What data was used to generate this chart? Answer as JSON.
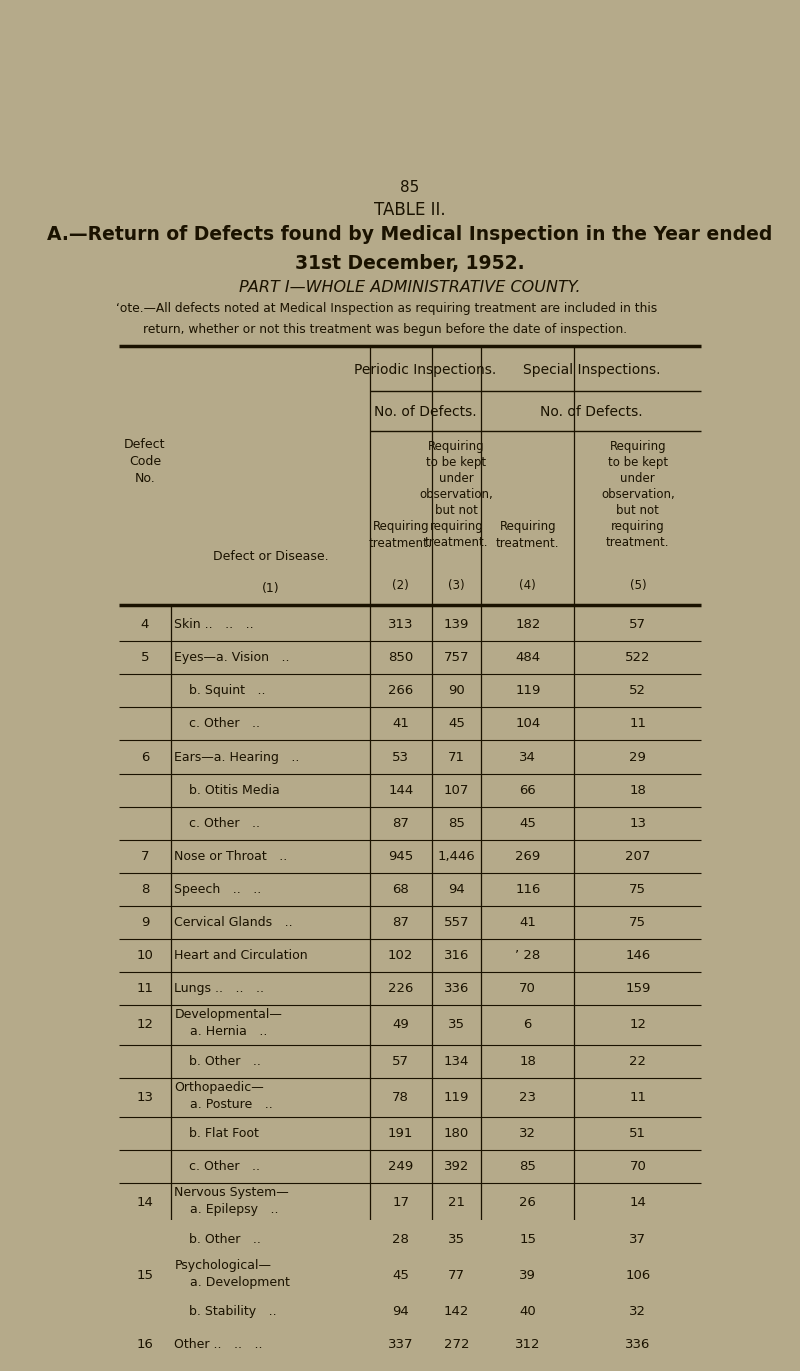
{
  "page_number": "85",
  "title_line1": "TABLE II.",
  "title_line2": "A.—Return of Defects found by Medical Inspection in the Year ended",
  "title_line3": "31st December, 1952.",
  "title_line4": "PART I—WHOLE ADMINISTRATIVE COUNTY.",
  "note_line1": "‘ote.—All defects noted at Medical Inspection as requiring treatment are included in this",
  "note_line2": "return, whether or not this treatment was begun before the date of inspection.",
  "bg_color": "#b5aa8a",
  "text_color": "#1a1200",
  "header1_periodic": "Periodic Inspections.",
  "header1_special": "Special Inspections.",
  "header2_periodic": "No. of Defects.",
  "header2_special": "No. of Defects.",
  "rows": [
    {
      "code": "4",
      "disease": "Skin .. .. ..",
      "c2": "313",
      "c3": "139",
      "c4": "182",
      "c5": "57",
      "indent": 0,
      "code_show": true,
      "two_line": false
    },
    {
      "code": "5",
      "disease": "Eyes—a. Vision ..",
      "c2": "850",
      "c3": "757",
      "c4": "484",
      "c5": "522",
      "indent": 0,
      "code_show": true,
      "two_line": false
    },
    {
      "code": "",
      "disease": "b. Squint ..",
      "c2": "266",
      "c3": "90",
      "c4": "119",
      "c5": "52",
      "indent": 1,
      "code_show": false,
      "two_line": false
    },
    {
      "code": "",
      "disease": "c. Other ..",
      "c2": "41",
      "c3": "45",
      "c4": "104",
      "c5": "11",
      "indent": 1,
      "code_show": false,
      "two_line": false
    },
    {
      "code": "6",
      "disease": "Ears—a. Hearing ..",
      "c2": "53",
      "c3": "71",
      "c4": "34",
      "c5": "29",
      "indent": 0,
      "code_show": true,
      "two_line": false
    },
    {
      "code": "",
      "disease": "b. Otitis Media",
      "c2": "144",
      "c3": "107",
      "c4": "66",
      "c5": "18",
      "indent": 1,
      "code_show": false,
      "two_line": false
    },
    {
      "code": "",
      "disease": "c. Other ..",
      "c2": "87",
      "c3": "85",
      "c4": "45",
      "c5": "13",
      "indent": 1,
      "code_show": false,
      "two_line": false
    },
    {
      "code": "7",
      "disease": "Nose or Throat ..",
      "c2": "945",
      "c3": "1,446",
      "c4": "269",
      "c5": "207",
      "indent": 0,
      "code_show": true,
      "two_line": false
    },
    {
      "code": "8",
      "disease": "Speech .. ..",
      "c2": "68",
      "c3": "94",
      "c4": "116",
      "c5": "75",
      "indent": 0,
      "code_show": true,
      "two_line": false
    },
    {
      "code": "9",
      "disease": "Cervical Glands ..",
      "c2": "87",
      "c3": "557",
      "c4": "41",
      "c5": "75",
      "indent": 0,
      "code_show": true,
      "two_line": false
    },
    {
      "code": "10",
      "disease": "Heart and Circulation",
      "c2": "102",
      "c3": "316",
      "c4": "’ 28",
      "c5": "146",
      "indent": 0,
      "code_show": true,
      "two_line": false
    },
    {
      "code": "11",
      "disease": "Lungs .. .. ..",
      "c2": "226",
      "c3": "336",
      "c4": "70",
      "c5": "159",
      "indent": 0,
      "code_show": true,
      "two_line": false
    },
    {
      "code": "12",
      "disease": "Developmental—",
      "c2": "49",
      "c3": "35",
      "c4": "6",
      "c5": "12",
      "indent": 0,
      "code_show": true,
      "two_line": true,
      "disease2": "a. Hernia .."
    },
    {
      "code": "",
      "disease": "b. Other ..",
      "c2": "57",
      "c3": "134",
      "c4": "18",
      "c5": "22",
      "indent": 1,
      "code_show": false,
      "two_line": false
    },
    {
      "code": "13",
      "disease": "Orthopaedic—",
      "c2": "78",
      "c3": "119",
      "c4": "23",
      "c5": "11",
      "indent": 0,
      "code_show": true,
      "two_line": true,
      "disease2": "a. Posture .."
    },
    {
      "code": "",
      "disease": "b. Flat Foot",
      "c2": "191",
      "c3": "180",
      "c4": "32",
      "c5": "51",
      "indent": 1,
      "code_show": false,
      "two_line": false
    },
    {
      "code": "",
      "disease": "c. Other ..",
      "c2": "249",
      "c3": "392",
      "c4": "85",
      "c5": "70",
      "indent": 1,
      "code_show": false,
      "two_line": false
    },
    {
      "code": "14",
      "disease": "Nervous System—",
      "c2": "17",
      "c3": "21",
      "c4": "26",
      "c5": "14",
      "indent": 0,
      "code_show": true,
      "two_line": true,
      "disease2": "a. Epilepsy .."
    },
    {
      "code": "",
      "disease": "b. Other ..",
      "c2": "28",
      "c3": "35",
      "c4": "15",
      "c5": "37",
      "indent": 1,
      "code_show": false,
      "two_line": false
    },
    {
      "code": "15",
      "disease": "Psychological—",
      "c2": "45",
      "c3": "77",
      "c4": "39",
      "c5": "106",
      "indent": 0,
      "code_show": true,
      "two_line": true,
      "disease2": "a. Development"
    },
    {
      "code": "",
      "disease": "b. Stability ..",
      "c2": "94",
      "c3": "142",
      "c4": "40",
      "c5": "32",
      "indent": 1,
      "code_show": false,
      "two_line": false
    },
    {
      "code": "16",
      "disease": "Other .. .. ..",
      "c2": "337",
      "c3": "272",
      "c4": "312",
      "c5": "336",
      "indent": 0,
      "code_show": true,
      "two_line": false
    }
  ]
}
